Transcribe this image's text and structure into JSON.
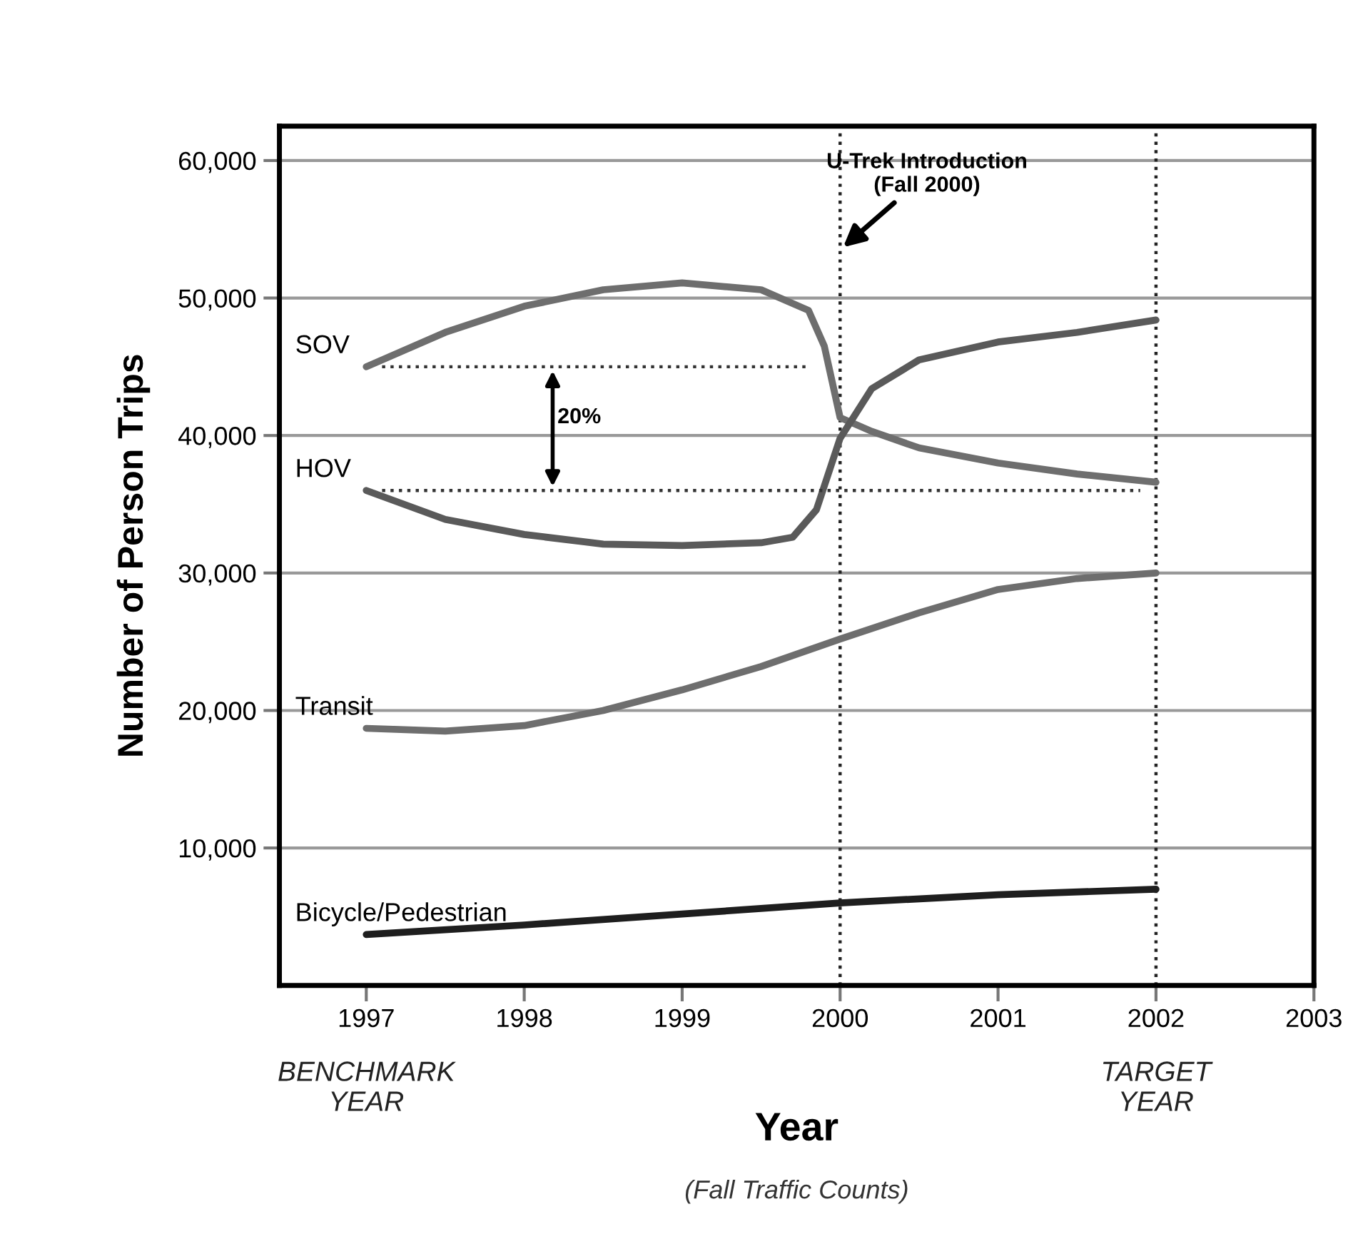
{
  "chart_data": {
    "type": "line",
    "xlabel": "Year",
    "ylabel": "Number of Person Trips",
    "xlim": [
      1996.45,
      2003
    ],
    "xticks": [
      1997,
      1998,
      1999,
      2000,
      2001,
      2002,
      2003
    ],
    "ylim": [
      0,
      62500
    ],
    "yticks": [
      {
        "value": 10000,
        "label": "10,000"
      },
      {
        "value": 20000,
        "label": "20,000"
      },
      {
        "value": 30000,
        "label": "30,000"
      },
      {
        "value": 40000,
        "label": "40,000"
      },
      {
        "value": 50000,
        "label": "50,000"
      },
      {
        "value": 60000,
        "label": "60,000"
      }
    ],
    "grid": "y",
    "legend": "left",
    "marker": "none",
    "series": [
      {
        "name": "SOV",
        "color": "#6e6e6e",
        "x": [
          1997,
          1997.5,
          1998,
          1998.5,
          1999,
          1999.5,
          1999.8,
          1999.9,
          2000,
          2000.2,
          2000.5,
          2001,
          2001.5,
          2002
        ],
        "values": [
          45000,
          47500,
          49400,
          50600,
          51100,
          50600,
          49100,
          46500,
          41300,
          40300,
          39100,
          38000,
          37200,
          36600
        ]
      },
      {
        "name": "HOV",
        "color": "#5a5a5a",
        "x": [
          1997,
          1997.5,
          1998,
          1998.5,
          1999,
          1999.5,
          1999.7,
          1999.85,
          2000,
          2000.2,
          2000.5,
          2001,
          2001.5,
          2002
        ],
        "values": [
          36000,
          33900,
          32800,
          32100,
          32000,
          32200,
          32600,
          34600,
          39800,
          43400,
          45500,
          46800,
          47500,
          48400
        ]
      },
      {
        "name": "Transit",
        "color": "#6e6e6e",
        "x": [
          1997,
          1997.5,
          1998,
          1998.5,
          1999,
          1999.5,
          2000,
          2000.5,
          2001,
          2001.5,
          2002
        ],
        "values": [
          18700,
          18500,
          18900,
          20000,
          21500,
          23200,
          25200,
          27100,
          28800,
          29600,
          30000
        ]
      },
      {
        "name": "Bicycle/Pedestrian",
        "color": "#1e1e1e",
        "x": [
          1997,
          1998,
          1999,
          2000,
          2001,
          2002
        ],
        "values": [
          3700,
          4400,
          5200,
          6000,
          6600,
          7000
        ]
      },
      {
        "color": "#333333",
        "line_style": "dotted",
        "x": [
          1997.1,
          1999.8
        ],
        "values": [
          45000,
          45000
        ]
      },
      {
        "color": "#333333",
        "line_style": "dotted",
        "x": [
          1997.1,
          2001.9
        ],
        "values": [
          36000,
          36000
        ]
      }
    ],
    "ref_lines": [
      {
        "axis": "x",
        "value": 2000,
        "color": "#222222",
        "line_style": "dotted"
      },
      {
        "axis": "x",
        "value": 2002,
        "color": "#222222",
        "line_style": "dotted"
      }
    ],
    "annotations": [
      {
        "text": "U-Trek Introduction\n(Fall 2000)",
        "x": 2000,
        "y": 53500
      },
      "20%",
      "BENCHMARK\nYEAR",
      "TARGET\nYEAR",
      "(Fall Traffic Counts)"
    ]
  }
}
